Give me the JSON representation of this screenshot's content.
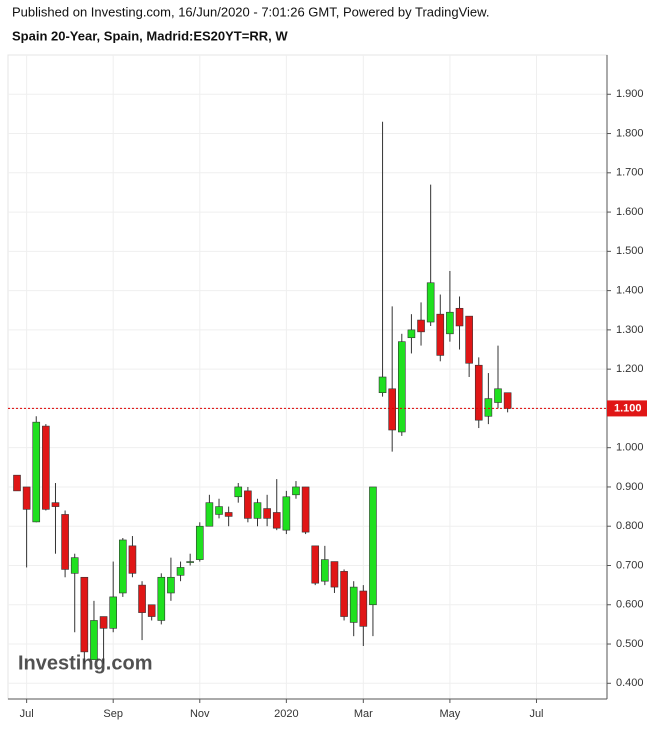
{
  "chart_data": {
    "type": "candlestick",
    "header": "Published on Investing.com, 16/Jun/2020 - 7:01:26 GMT, Powered by TradingView.",
    "title": "Spain 20-Year, Spain, Madrid:ES20YT=RR, W",
    "watermark": "Investing.com",
    "categories": [
      null,
      "Jul",
      null,
      null,
      null,
      null,
      null,
      null,
      null,
      null,
      "Sep",
      null,
      null,
      null,
      null,
      null,
      null,
      null,
      null,
      "Nov",
      null,
      null,
      null,
      null,
      null,
      null,
      null,
      null,
      "2020",
      null,
      null,
      null,
      null,
      null,
      null,
      null,
      "Mar",
      null,
      null,
      null,
      null,
      null,
      null,
      null,
      null,
      "May",
      null,
      null,
      null,
      null,
      null,
      null,
      null,
      null,
      "Jul"
    ],
    "open": [
      0.93,
      0.9,
      0.811,
      1.055,
      0.86,
      0.83,
      0.68,
      0.67,
      0.46,
      0.57,
      0.54,
      0.63,
      0.75,
      0.65,
      0.6,
      0.56,
      0.63,
      0.675,
      0.71,
      0.715,
      0.8,
      0.83,
      0.835,
      0.875,
      0.89,
      0.82,
      0.845,
      0.835,
      0.79,
      0.88,
      0.9,
      0.75,
      0.66,
      0.71,
      0.685,
      0.555,
      0.635,
      0.6,
      1.14,
      1.15,
      1.04,
      1.28,
      1.325,
      1.32,
      1.34,
      1.29,
      1.355,
      1.335,
      1.21,
      1.08,
      1.115,
      1.14,
      null,
      null,
      null
    ],
    "high": [
      0.93,
      0.9,
      1.08,
      1.06,
      0.91,
      0.84,
      0.73,
      0.67,
      0.61,
      0.57,
      0.71,
      0.77,
      0.775,
      0.66,
      0.6,
      0.68,
      0.72,
      0.71,
      0.73,
      0.81,
      0.88,
      0.87,
      0.85,
      0.91,
      0.9,
      0.87,
      0.88,
      0.92,
      0.89,
      0.915,
      0.9,
      0.75,
      0.75,
      0.71,
      0.69,
      0.66,
      0.65,
      0.9,
      1.83,
      1.36,
      1.29,
      1.34,
      1.37,
      1.67,
      1.39,
      1.45,
      1.385,
      1.335,
      1.23,
      1.19,
      1.26,
      1.14,
      null,
      null,
      null
    ],
    "low": [
      0.89,
      0.695,
      0.81,
      0.84,
      0.73,
      0.67,
      0.53,
      0.45,
      0.46,
      0.45,
      0.53,
      0.62,
      0.67,
      0.51,
      0.56,
      0.55,
      0.61,
      0.66,
      0.7,
      0.71,
      0.8,
      0.82,
      0.8,
      0.86,
      0.81,
      0.8,
      0.8,
      0.79,
      0.78,
      0.87,
      0.78,
      0.65,
      0.65,
      0.63,
      0.56,
      0.52,
      0.495,
      0.52,
      1.13,
      0.99,
      1.03,
      1.24,
      1.26,
      1.31,
      1.22,
      1.27,
      1.25,
      1.18,
      1.05,
      1.06,
      1.1,
      1.09,
      null,
      null,
      null
    ],
    "close": [
      0.89,
      0.843,
      1.065,
      0.843,
      0.85,
      0.69,
      0.72,
      0.48,
      0.56,
      0.54,
      0.62,
      0.765,
      0.68,
      0.58,
      0.57,
      0.67,
      0.67,
      0.695,
      0.71,
      0.8,
      0.86,
      0.85,
      0.825,
      0.9,
      0.82,
      0.86,
      0.82,
      0.795,
      0.875,
      0.9,
      0.785,
      0.655,
      0.715,
      0.645,
      0.57,
      0.645,
      0.545,
      0.9,
      1.18,
      1.045,
      1.27,
      1.3,
      1.295,
      1.42,
      1.235,
      1.345,
      1.31,
      1.215,
      1.07,
      1.125,
      1.15,
      1.1,
      null,
      null,
      null
    ],
    "up_color": "#1fe01f",
    "down_color": "#e01616",
    "ylim": [
      0.36,
      2.0
    ],
    "yticks": [
      {
        "value": 0.4,
        "label": "0.400"
      },
      {
        "value": 0.5,
        "label": "0.500"
      },
      {
        "value": 0.6,
        "label": "0.600"
      },
      {
        "value": 0.7,
        "label": "0.700"
      },
      {
        "value": 0.8,
        "label": "0.800"
      },
      {
        "value": 0.9,
        "label": "0.900"
      },
      {
        "value": 1.0,
        "label": "1.000"
      },
      {
        "value": 1.1,
        "label": "1.100"
      },
      {
        "value": 1.2,
        "label": "1.200"
      },
      {
        "value": 1.3,
        "label": "1.300"
      },
      {
        "value": 1.4,
        "label": "1.400"
      },
      {
        "value": 1.5,
        "label": "1.500"
      },
      {
        "value": 1.6,
        "label": "1.600"
      },
      {
        "value": 1.7,
        "label": "1.700"
      },
      {
        "value": 1.8,
        "label": "1.800"
      },
      {
        "value": 1.9,
        "label": "1.900"
      }
    ],
    "last_price": {
      "value": 1.1,
      "label": "1.100"
    },
    "grid": true
  }
}
